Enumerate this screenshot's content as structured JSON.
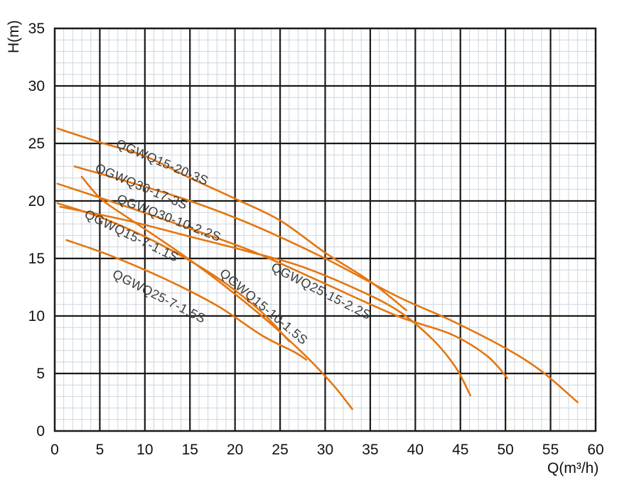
{
  "chart_data": {
    "type": "line",
    "title": "",
    "xlabel": "Q(m³/h)",
    "ylabel": "H(m)",
    "xlim": [
      0,
      60
    ],
    "ylim": [
      0,
      35
    ],
    "x_ticks": [
      0,
      5,
      10,
      15,
      20,
      25,
      30,
      35,
      40,
      45,
      50,
      55,
      60
    ],
    "y_ticks": [
      0,
      5,
      10,
      15,
      20,
      25,
      30,
      35
    ],
    "grid": {
      "minor_step": 1,
      "major_step": 5
    },
    "legend_position": "labels-along-curves",
    "series": [
      {
        "name": "QGWQ15-20-3S",
        "label": {
          "q": 6.7,
          "h": 24.7,
          "rotation_deg": 23
        },
        "points": [
          [
            0.3,
            26.3
          ],
          [
            5,
            25.1
          ],
          [
            10,
            23.9
          ],
          [
            15,
            22.0
          ],
          [
            20,
            20.2
          ],
          [
            25,
            18.3
          ],
          [
            30,
            15.5
          ],
          [
            35,
            13.0
          ],
          [
            39,
            10.5
          ]
        ]
      },
      {
        "name": "QGWQ30-17-3S",
        "label": {
          "q": 4.4,
          "h": 22.6,
          "rotation_deg": 23
        },
        "points": [
          [
            2.2,
            23.0
          ],
          [
            8,
            21.7
          ],
          [
            15,
            20.0
          ],
          [
            22,
            17.9
          ],
          [
            30,
            15.0
          ],
          [
            38,
            11.7
          ],
          [
            44,
            9.6
          ],
          [
            50,
            7.2
          ],
          [
            54,
            5.2
          ],
          [
            58,
            2.5
          ]
        ]
      },
      {
        "name": "QGWQ30-10-2.2S",
        "label": {
          "q": 6.8,
          "h": 19.9,
          "rotation_deg": 21
        },
        "points": [
          [
            0.3,
            21.5
          ],
          [
            8,
            19.5
          ],
          [
            15,
            17.6
          ],
          [
            22,
            15.6
          ],
          [
            30,
            12.8
          ],
          [
            38,
            10.0
          ],
          [
            44,
            8.4
          ],
          [
            48,
            6.5
          ],
          [
            50.2,
            4.6
          ]
        ]
      },
      {
        "name": "QGWQ15-7-1.1S",
        "label": {
          "q": 3.2,
          "h": 18.6,
          "rotation_deg": 26
        },
        "points": [
          [
            0.3,
            19.8
          ],
          [
            5,
            18.6
          ],
          [
            10,
            16.9
          ],
          [
            15,
            14.8
          ],
          [
            19,
            12.8
          ],
          [
            23,
            10.3
          ],
          [
            26,
            7.8
          ]
        ]
      },
      {
        "name": "QGWQ25-7-1.5S",
        "label": {
          "q": 6.3,
          "h": 13.4,
          "rotation_deg": 27
        },
        "points": [
          [
            1.3,
            16.6
          ],
          [
            6,
            15.3
          ],
          [
            12,
            13.3
          ],
          [
            18,
            10.9
          ],
          [
            23,
            8.3
          ],
          [
            26.5,
            6.9
          ],
          [
            27.9,
            6.2
          ]
        ]
      },
      {
        "name": "QGWQ15-10-1.5S",
        "label": {
          "q": 18.2,
          "h": 13.6,
          "rotation_deg": 40
        },
        "points": [
          [
            3.0,
            22.1
          ],
          [
            5.1,
            20.2
          ],
          [
            8,
            18.6
          ],
          [
            12,
            16.5
          ],
          [
            16,
            14.3
          ],
          [
            20,
            11.9
          ],
          [
            24,
            9.3
          ],
          [
            28,
            6.4
          ],
          [
            31,
            3.9
          ],
          [
            33,
            1.9
          ]
        ]
      },
      {
        "name": "QGWQ25-15-2.2S",
        "label": {
          "q": 23.9,
          "h": 14.0,
          "rotation_deg": 27
        },
        "points": [
          [
            0.6,
            19.5
          ],
          [
            8,
            18.3
          ],
          [
            15,
            16.9
          ],
          [
            21,
            15.7
          ],
          [
            27,
            14.4
          ],
          [
            33,
            12.5
          ],
          [
            38,
            10.5
          ],
          [
            42,
            7.9
          ],
          [
            44.5,
            5.5
          ],
          [
            46.1,
            3.1
          ]
        ]
      }
    ],
    "colors": {
      "curve": "#e5760f",
      "grid_major": "#1a1a1a",
      "grid_minor": "#ccd6df",
      "curve_label": "#3a3a3a",
      "tick_label": "#111111",
      "background": "#ffffff"
    }
  }
}
